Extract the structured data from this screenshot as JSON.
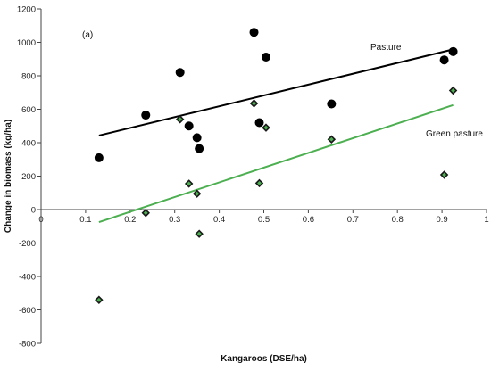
{
  "chart_data": {
    "type": "scatter",
    "panel_label": "(a)",
    "xlabel": "Kangaroos (DSE/ha)",
    "ylabel": "Change in biomass (kg/ha)",
    "xlim": [
      0,
      1
    ],
    "ylim": [
      -800,
      1200
    ],
    "x_ticks": [
      0,
      0.1,
      0.2,
      0.3,
      0.4,
      0.5,
      0.6,
      0.7,
      0.8,
      0.9,
      1
    ],
    "x_tick_labels": [
      "0",
      "0.1",
      "0.2",
      "0.3",
      "0.4",
      "0.5",
      "0.6",
      "0.7",
      "0.8",
      "0.9",
      "1"
    ],
    "y_ticks": [
      -800,
      -600,
      -400,
      -200,
      0,
      200,
      400,
      600,
      800,
      1000,
      1200
    ],
    "y_tick_labels": [
      "-800",
      "-600",
      "-400",
      "-200",
      "0",
      "200",
      "400",
      "600",
      "800",
      "1000",
      "1200"
    ],
    "grid": false,
    "series": [
      {
        "name": "Pasture",
        "marker": "circle",
        "color": "#000000",
        "points": [
          {
            "x": 0.13,
            "y": 310
          },
          {
            "x": 0.235,
            "y": 565
          },
          {
            "x": 0.312,
            "y": 820
          },
          {
            "x": 0.332,
            "y": 500
          },
          {
            "x": 0.35,
            "y": 430
          },
          {
            "x": 0.355,
            "y": 365
          },
          {
            "x": 0.478,
            "y": 1060
          },
          {
            "x": 0.49,
            "y": 520
          },
          {
            "x": 0.505,
            "y": 912
          },
          {
            "x": 0.652,
            "y": 632
          },
          {
            "x": 0.905,
            "y": 895
          },
          {
            "x": 0.925,
            "y": 945
          }
        ],
        "trend": {
          "x": [
            0.13,
            0.925
          ],
          "y": [
            443,
            958
          ]
        }
      },
      {
        "name": "Green pasture",
        "marker": "diamond",
        "color": "#1a1a1a",
        "fill": "#4caf50",
        "points": [
          {
            "x": 0.13,
            "y": -540
          },
          {
            "x": 0.235,
            "y": -20
          },
          {
            "x": 0.312,
            "y": 540
          },
          {
            "x": 0.332,
            "y": 155
          },
          {
            "x": 0.35,
            "y": 95
          },
          {
            "x": 0.355,
            "y": -145
          },
          {
            "x": 0.478,
            "y": 635
          },
          {
            "x": 0.49,
            "y": 158
          },
          {
            "x": 0.505,
            "y": 490
          },
          {
            "x": 0.652,
            "y": 420
          },
          {
            "x": 0.905,
            "y": 208
          },
          {
            "x": 0.925,
            "y": 712
          }
        ],
        "trend": {
          "x": [
            0.13,
            0.925
          ],
          "y": [
            -75,
            625
          ]
        },
        "trend_color": "#4caf50"
      }
    ],
    "series_label_positions": {
      "Pasture": "upper-right",
      "Green pasture": "right"
    }
  }
}
